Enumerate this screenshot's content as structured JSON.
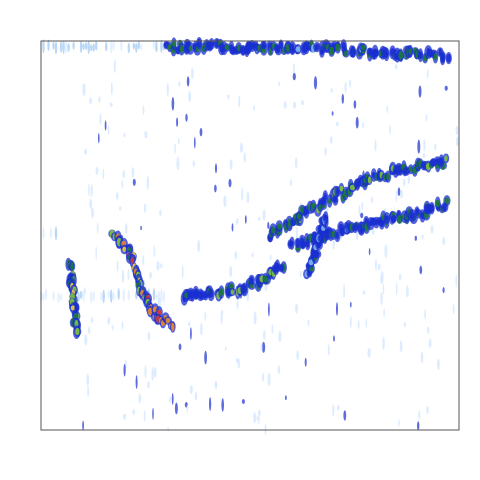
{
  "chart_data": {
    "type": "heatmap",
    "title": "",
    "xlabel": "",
    "ylabel": "",
    "xlim": [
      0,
      1
    ],
    "ylim": [
      0,
      1
    ],
    "grid": false,
    "legend": "none",
    "colormap": [
      "#ffffff",
      "#cfe6ff",
      "#7fb8f0",
      "#1a2fd0",
      "#1c7a3a",
      "#7fc23a",
      "#f2d23a",
      "#f08a2a",
      "#e03a2a"
    ],
    "ridges": [
      {
        "name": "",
        "points": [
          [
            0.07,
            0.43
          ],
          [
            0.075,
            0.37
          ],
          [
            0.08,
            0.31
          ],
          [
            0.085,
            0.25
          ]
        ],
        "peak": 0.75
      },
      {
        "name": "",
        "points": [
          [
            0.17,
            0.5
          ],
          [
            0.21,
            0.47
          ],
          [
            0.24,
            0.36
          ],
          [
            0.27,
            0.3
          ],
          [
            0.32,
            0.27
          ]
        ],
        "peak": 0.95
      },
      {
        "name": "",
        "points": [
          [
            0.34,
            0.34
          ],
          [
            0.4,
            0.35
          ],
          [
            0.46,
            0.36
          ],
          [
            0.52,
            0.38
          ],
          [
            0.58,
            0.42
          ]
        ],
        "peak": 0.6
      },
      {
        "name": "",
        "points": [
          [
            0.55,
            0.5
          ],
          [
            0.62,
            0.55
          ],
          [
            0.7,
            0.6
          ],
          [
            0.78,
            0.64
          ],
          [
            0.86,
            0.67
          ],
          [
            0.97,
            0.69
          ]
        ],
        "peak": 0.6
      },
      {
        "name": "",
        "points": [
          [
            0.6,
            0.47
          ],
          [
            0.68,
            0.5
          ],
          [
            0.78,
            0.53
          ],
          [
            0.88,
            0.55
          ],
          [
            0.97,
            0.58
          ]
        ],
        "peak": 0.55
      },
      {
        "name": "",
        "points": [
          [
            0.3,
            0.985
          ],
          [
            0.5,
            0.985
          ],
          [
            0.7,
            0.98
          ],
          [
            0.85,
            0.97
          ],
          [
            0.97,
            0.96
          ]
        ],
        "peak": 0.55
      },
      {
        "name": "",
        "points": [
          [
            0.64,
            0.4
          ],
          [
            0.66,
            0.47
          ],
          [
            0.68,
            0.55
          ]
        ],
        "peak": 0.5
      }
    ],
    "bands": [
      {
        "y": 0.985,
        "x_from": 0.0,
        "x_to": 0.3,
        "level": 0.2
      },
      {
        "y": 0.345,
        "x_from": 0.0,
        "x_to": 0.3,
        "level": 0.15
      },
      {
        "y": 0.51,
        "x_from": 0.0,
        "x_to": 0.04,
        "level": 0.15
      }
    ],
    "scatter": {
      "count": 260,
      "x_range": [
        0.1,
        1.0
      ],
      "y_range": [
        0.0,
        0.95
      ],
      "level": 0.4
    }
  }
}
